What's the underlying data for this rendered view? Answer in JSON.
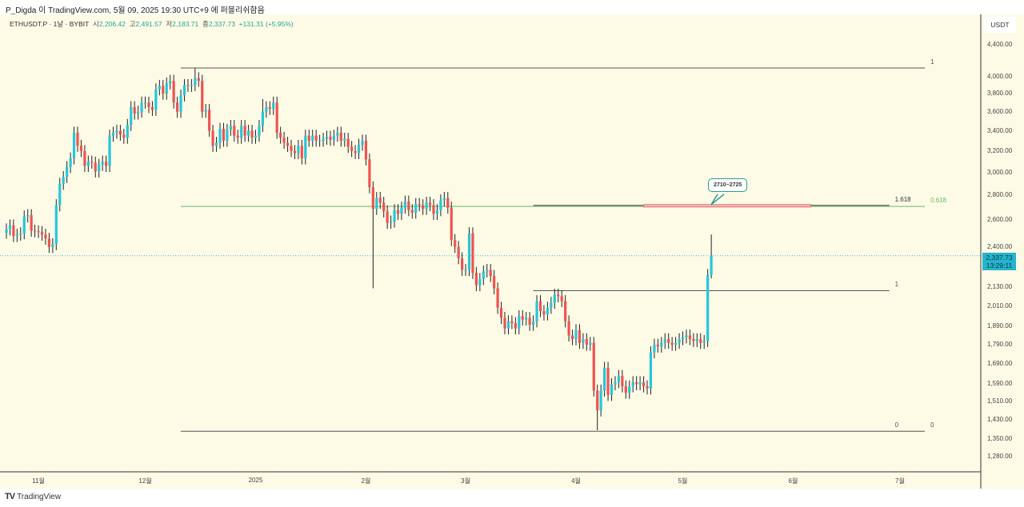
{
  "header": {
    "published": "P_Digda 이 TradingView.com, 5월 09, 2025 19:30 UTC+9 에 퍼블리쉬함음"
  },
  "legend": {
    "symbol": "ETHUSDT.P · 1날 · BYBIT",
    "open_label": "시",
    "open": "2,206.42",
    "high_label": "고",
    "high": "2,491.57",
    "low_label": "저",
    "low": "2,183.71",
    "close_label": "종",
    "close": "2,337.73",
    "change": "+131.31 (+5.95%)"
  },
  "axis": {
    "unit": "USDT",
    "price_ticks": [
      "4,400.00",
      "4,000.00",
      "3,800.00",
      "3,600.00",
      "3,400.00",
      "3,200.00",
      "3,000.00",
      "2,800.00",
      "2,600.00",
      "2,400.00",
      "2,130.00",
      "2,010.00",
      "1,890.00",
      "1,790.00",
      "1,690.00",
      "1,590.00",
      "1,510.00",
      "1,430.00",
      "1,350.00",
      "1,280.00"
    ],
    "time_ticks": [
      {
        "label": "11월",
        "day": 9
      },
      {
        "label": "12월",
        "day": 39
      },
      {
        "label": "2025",
        "day": 70
      },
      {
        "label": "2월",
        "day": 101
      },
      {
        "label": "3월",
        "day": 129
      },
      {
        "label": "4월",
        "day": 160
      },
      {
        "label": "5월",
        "day": 190
      },
      {
        "label": "6월",
        "day": 221
      },
      {
        "label": "7월",
        "day": 251
      }
    ],
    "current_price": "2,337.73",
    "countdown": "13:29:11"
  },
  "colors": {
    "up": "#26c6da",
    "down": "#ef5350",
    "bg": "#fdfae6",
    "fib_green": "#66bb6a"
  },
  "chart_data": {
    "type": "candlestick",
    "scale": "log",
    "ylim": [
      1240,
      4500
    ],
    "start": "2024-10-23",
    "interval": "1D",
    "closes": [
      2530,
      2560,
      2480,
      2490,
      2500,
      2630,
      2640,
      2520,
      2515,
      2510,
      2490,
      2460,
      2400,
      2420,
      2720,
      2900,
      2960,
      3050,
      3130,
      3380,
      3250,
      3200,
      3060,
      3100,
      3090,
      3010,
      3070,
      3100,
      3060,
      3350,
      3380,
      3400,
      3360,
      3330,
      3460,
      3650,
      3580,
      3600,
      3700,
      3700,
      3650,
      3620,
      3850,
      3890,
      3800,
      3920,
      3950,
      3700,
      3600,
      3780,
      3900,
      3890,
      3900,
      3980,
      3950,
      3600,
      3620,
      3400,
      3250,
      3280,
      3420,
      3300,
      3410,
      3450,
      3350,
      3330,
      3450,
      3350,
      3400,
      3330,
      3350,
      3450,
      3600,
      3650,
      3630,
      3700,
      3380,
      3330,
      3280,
      3250,
      3200,
      3180,
      3250,
      3130,
      3350,
      3300,
      3350,
      3300,
      3300,
      3320,
      3340,
      3310,
      3350,
      3380,
      3300,
      3320,
      3240,
      3200,
      3180,
      3260,
      3300,
      3120,
      2870,
      2690,
      2780,
      2740,
      2670,
      2580,
      2590,
      2680,
      2650,
      2700,
      2750,
      2680,
      2660,
      2730,
      2720,
      2690,
      2740,
      2720,
      2650,
      2680,
      2760,
      2780,
      2700,
      2450,
      2400,
      2320,
      2240,
      2240,
      2500,
      2220,
      2140,
      2180,
      2230,
      2240,
      2200,
      2120,
      2000,
      1940,
      1880,
      1920,
      1910,
      1880,
      1950,
      1930,
      1940,
      1900,
      1920,
      2040,
      1980,
      1960,
      2000,
      2030,
      2080,
      2070,
      2040,
      1920,
      1840,
      1820,
      1870,
      1800,
      1820,
      1790,
      1800,
      1560,
      1470,
      1560,
      1670,
      1540,
      1590,
      1600,
      1630,
      1580,
      1550,
      1580,
      1600,
      1590,
      1600,
      1580,
      1570,
      1750,
      1790,
      1780,
      1800,
      1820,
      1800,
      1790,
      1800,
      1820,
      1830,
      1840,
      1820,
      1810,
      1820,
      1800,
      1810,
      2206.42,
      2337.73
    ],
    "wicks": [
      {
        "day": 103,
        "low": 2120
      },
      {
        "day": 166,
        "low": 1385
      },
      {
        "day": 198,
        "high": 2491.57,
        "low": 2183.71
      },
      {
        "day": 72,
        "high": 3740
      },
      {
        "day": 53,
        "high": 4100
      }
    ],
    "drawings": [
      {
        "kind": "fib_line",
        "price": 4104,
        "from_day": 49,
        "to_day": 258,
        "label": "1",
        "color": "#555"
      },
      {
        "kind": "fib_line",
        "price": 2710,
        "from_day": 49,
        "to_day": 258,
        "label": "0.618",
        "color": "#66bb6a"
      },
      {
        "kind": "fib_line",
        "price": 1381,
        "from_day": 49,
        "to_day": 258,
        "label": "0",
        "color": "#555"
      },
      {
        "kind": "fib_line",
        "price": 2718,
        "from_day": 148,
        "to_day": 248,
        "label": "1.618",
        "color": "#333"
      },
      {
        "kind": "fib_line",
        "price": 2105,
        "from_day": 148,
        "to_day": 248,
        "label": "1",
        "color": "#555"
      },
      {
        "kind": "fib_line",
        "price": 1381,
        "from_day": 248,
        "to_day": 248,
        "label": "0",
        "color": "#555"
      }
    ],
    "zone": {
      "from_day": 179,
      "to_day": 226,
      "top": 2725,
      "bottom": 2705,
      "callout": "2710~2725",
      "callout_day": 198
    }
  }
}
